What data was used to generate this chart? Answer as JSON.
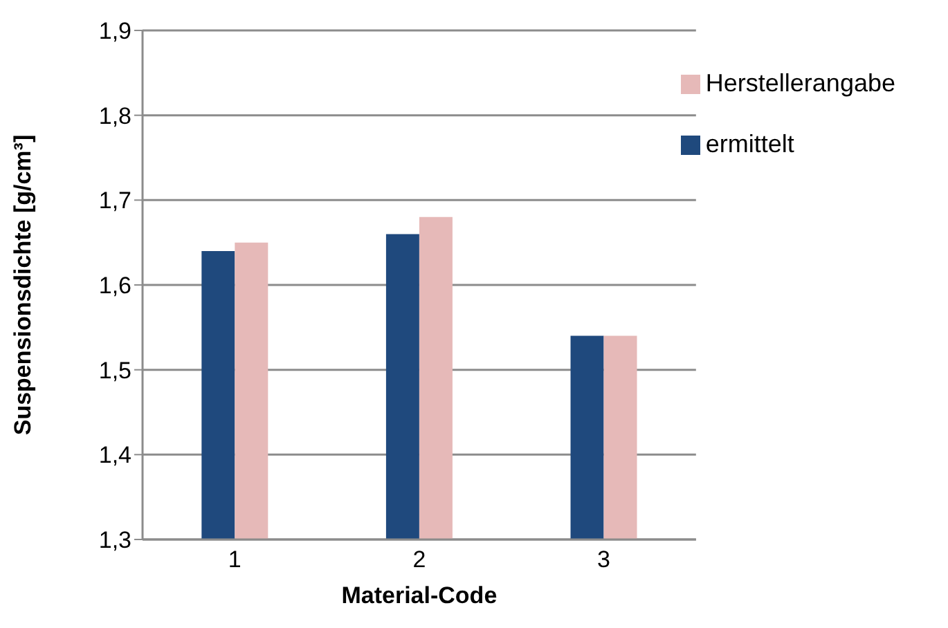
{
  "chart_data": {
    "type": "bar",
    "xlabel": "Material-Code",
    "ylabel": "Suspensionsdichte [g/cm³]",
    "categories": [
      "1",
      "2",
      "3"
    ],
    "series": [
      {
        "name": "ermittelt",
        "color": "#1f497d",
        "values": [
          1.64,
          1.66,
          1.54
        ]
      },
      {
        "name": "Herstellerangabe",
        "color": "#e6b9b8",
        "values": [
          1.65,
          1.68,
          1.54
        ]
      }
    ],
    "ylim": [
      1.3,
      1.9
    ],
    "yticks": [
      {
        "value": 1.3,
        "label": "1,3"
      },
      {
        "value": 1.4,
        "label": "1,4"
      },
      {
        "value": 1.5,
        "label": "1,5"
      },
      {
        "value": 1.6,
        "label": "1,6"
      },
      {
        "value": 1.7,
        "label": "1,7"
      },
      {
        "value": 1.8,
        "label": "1,8"
      },
      {
        "value": 1.9,
        "label": "1,9"
      }
    ],
    "grid": "y",
    "legend": "top right"
  }
}
